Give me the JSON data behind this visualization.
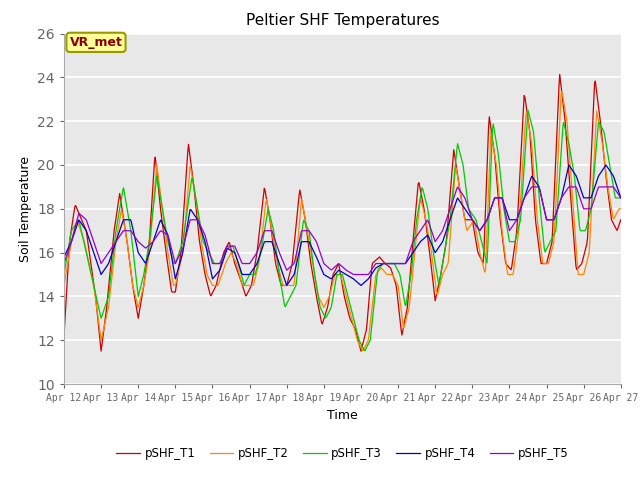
{
  "title": "Peltier SHF Temperatures",
  "xlabel": "Time",
  "ylabel": "Soil Temperature",
  "xlim": [
    0,
    15
  ],
  "ylim": [
    10,
    26
  ],
  "yticks": [
    10,
    12,
    14,
    16,
    18,
    20,
    22,
    24,
    26
  ],
  "xtick_labels": [
    "Apr 12",
    "Apr 13",
    "Apr 14",
    "Apr 15",
    "Apr 16",
    "Apr 17",
    "Apr 18",
    "Apr 19",
    "Apr 20",
    "Apr 21",
    "Apr 22",
    "Apr 23",
    "Apr 24",
    "Apr 25",
    "Apr 26",
    "Apr 27"
  ],
  "annotation_text": "VR_met",
  "colors": {
    "T1": "#cc0000",
    "T2": "#ff8800",
    "T3": "#00cc00",
    "T4": "#0000cc",
    "T5": "#9900cc"
  },
  "background_color": "#e8e8e8",
  "grid_color": "#ffffff",
  "legend_labels": [
    "pSHF_T1",
    "pSHF_T2",
    "pSHF_T3",
    "pSHF_T4",
    "pSHF_T5"
  ],
  "T1_anchors": [
    [
      0.0,
      12.2
    ],
    [
      0.15,
      16.5
    ],
    [
      0.3,
      18.2
    ],
    [
      0.6,
      17.0
    ],
    [
      0.85,
      14.0
    ],
    [
      1.0,
      11.5
    ],
    [
      1.15,
      13.5
    ],
    [
      1.35,
      17.0
    ],
    [
      1.5,
      18.7
    ],
    [
      1.7,
      16.5
    ],
    [
      1.85,
      14.5
    ],
    [
      2.0,
      13.0
    ],
    [
      2.15,
      14.5
    ],
    [
      2.3,
      16.5
    ],
    [
      2.45,
      20.5
    ],
    [
      2.6,
      18.0
    ],
    [
      2.75,
      16.0
    ],
    [
      2.9,
      14.2
    ],
    [
      3.0,
      14.2
    ],
    [
      3.15,
      16.0
    ],
    [
      3.35,
      21.0
    ],
    [
      3.5,
      19.0
    ],
    [
      3.65,
      16.5
    ],
    [
      3.8,
      15.0
    ],
    [
      3.95,
      14.0
    ],
    [
      4.1,
      14.5
    ],
    [
      4.3,
      16.0
    ],
    [
      4.45,
      16.5
    ],
    [
      4.6,
      15.5
    ],
    [
      4.75,
      14.8
    ],
    [
      4.9,
      14.0
    ],
    [
      5.05,
      14.5
    ],
    [
      5.2,
      16.0
    ],
    [
      5.4,
      19.0
    ],
    [
      5.55,
      17.5
    ],
    [
      5.7,
      15.5
    ],
    [
      5.85,
      14.5
    ],
    [
      6.0,
      14.5
    ],
    [
      6.15,
      15.5
    ],
    [
      6.35,
      18.9
    ],
    [
      6.5,
      17.5
    ],
    [
      6.65,
      15.5
    ],
    [
      6.8,
      14.0
    ],
    [
      6.95,
      12.7
    ],
    [
      7.1,
      13.5
    ],
    [
      7.25,
      15.0
    ],
    [
      7.4,
      15.5
    ],
    [
      7.55,
      14.0
    ],
    [
      7.7,
      13.0
    ],
    [
      7.85,
      12.5
    ],
    [
      8.0,
      11.5
    ],
    [
      8.15,
      12.5
    ],
    [
      8.3,
      15.5
    ],
    [
      8.5,
      15.8
    ],
    [
      8.65,
      15.5
    ],
    [
      8.8,
      15.3
    ],
    [
      8.95,
      14.5
    ],
    [
      9.1,
      12.2
    ],
    [
      9.25,
      13.5
    ],
    [
      9.4,
      16.5
    ],
    [
      9.55,
      19.3
    ],
    [
      9.7,
      18.0
    ],
    [
      9.85,
      16.0
    ],
    [
      10.0,
      13.8
    ],
    [
      10.15,
      15.0
    ],
    [
      10.3,
      16.5
    ],
    [
      10.5,
      20.7
    ],
    [
      10.65,
      19.0
    ],
    [
      10.8,
      17.5
    ],
    [
      11.0,
      17.5
    ],
    [
      11.15,
      16.0
    ],
    [
      11.3,
      15.5
    ],
    [
      11.45,
      22.3
    ],
    [
      11.6,
      20.5
    ],
    [
      11.75,
      17.5
    ],
    [
      11.9,
      15.5
    ],
    [
      12.05,
      15.2
    ],
    [
      12.2,
      17.0
    ],
    [
      12.4,
      23.3
    ],
    [
      12.55,
      21.5
    ],
    [
      12.7,
      17.5
    ],
    [
      12.85,
      15.5
    ],
    [
      13.0,
      15.5
    ],
    [
      13.15,
      16.5
    ],
    [
      13.35,
      24.2
    ],
    [
      13.5,
      22.0
    ],
    [
      13.65,
      18.5
    ],
    [
      13.8,
      15.2
    ],
    [
      13.95,
      15.5
    ],
    [
      14.1,
      16.5
    ],
    [
      14.3,
      24.0
    ],
    [
      14.45,
      22.0
    ],
    [
      14.6,
      19.5
    ],
    [
      14.75,
      17.5
    ],
    [
      14.9,
      17.0
    ],
    [
      15.0,
      17.5
    ]
  ],
  "T2_anchors": [
    [
      0.0,
      14.5
    ],
    [
      0.2,
      16.5
    ],
    [
      0.35,
      17.5
    ],
    [
      0.55,
      16.5
    ],
    [
      0.8,
      14.5
    ],
    [
      1.0,
      12.0
    ],
    [
      1.2,
      13.5
    ],
    [
      1.4,
      16.5
    ],
    [
      1.55,
      18.0
    ],
    [
      1.7,
      16.5
    ],
    [
      1.85,
      14.5
    ],
    [
      2.0,
      13.5
    ],
    [
      2.15,
      14.5
    ],
    [
      2.3,
      16.0
    ],
    [
      2.5,
      20.0
    ],
    [
      2.65,
      18.0
    ],
    [
      2.8,
      16.0
    ],
    [
      2.95,
      14.5
    ],
    [
      3.0,
      14.5
    ],
    [
      3.2,
      16.0
    ],
    [
      3.4,
      20.0
    ],
    [
      3.55,
      18.5
    ],
    [
      3.7,
      16.5
    ],
    [
      3.85,
      15.0
    ],
    [
      4.0,
      14.5
    ],
    [
      4.15,
      14.5
    ],
    [
      4.35,
      15.5
    ],
    [
      4.5,
      16.0
    ],
    [
      4.65,
      15.5
    ],
    [
      4.8,
      14.5
    ],
    [
      4.95,
      14.5
    ],
    [
      5.1,
      14.5
    ],
    [
      5.25,
      15.5
    ],
    [
      5.45,
      18.5
    ],
    [
      5.6,
      17.0
    ],
    [
      5.75,
      15.5
    ],
    [
      5.9,
      14.5
    ],
    [
      6.05,
      14.5
    ],
    [
      6.2,
      14.5
    ],
    [
      6.4,
      18.5
    ],
    [
      6.55,
      17.0
    ],
    [
      6.7,
      15.5
    ],
    [
      6.85,
      14.0
    ],
    [
      7.0,
      13.5
    ],
    [
      7.15,
      14.0
    ],
    [
      7.3,
      15.0
    ],
    [
      7.45,
      15.0
    ],
    [
      7.6,
      14.0
    ],
    [
      7.75,
      13.0
    ],
    [
      7.9,
      12.0
    ],
    [
      8.05,
      11.5
    ],
    [
      8.2,
      12.0
    ],
    [
      8.4,
      15.0
    ],
    [
      8.55,
      15.3
    ],
    [
      8.7,
      15.0
    ],
    [
      8.85,
      15.0
    ],
    [
      9.0,
      14.5
    ],
    [
      9.15,
      12.5
    ],
    [
      9.3,
      13.5
    ],
    [
      9.45,
      16.0
    ],
    [
      9.6,
      18.5
    ],
    [
      9.75,
      17.5
    ],
    [
      9.9,
      16.0
    ],
    [
      10.05,
      14.0
    ],
    [
      10.2,
      15.0
    ],
    [
      10.35,
      15.5
    ],
    [
      10.55,
      20.0
    ],
    [
      10.7,
      18.5
    ],
    [
      10.85,
      17.0
    ],
    [
      11.05,
      17.5
    ],
    [
      11.2,
      16.0
    ],
    [
      11.35,
      15.0
    ],
    [
      11.5,
      21.5
    ],
    [
      11.65,
      20.0
    ],
    [
      11.8,
      17.0
    ],
    [
      11.95,
      15.0
    ],
    [
      12.1,
      15.0
    ],
    [
      12.25,
      17.0
    ],
    [
      12.45,
      22.5
    ],
    [
      12.6,
      21.0
    ],
    [
      12.75,
      17.5
    ],
    [
      12.9,
      15.5
    ],
    [
      13.05,
      15.5
    ],
    [
      13.2,
      16.5
    ],
    [
      13.4,
      23.5
    ],
    [
      13.55,
      22.0
    ],
    [
      13.7,
      18.5
    ],
    [
      13.85,
      15.0
    ],
    [
      14.0,
      15.0
    ],
    [
      14.15,
      16.0
    ],
    [
      14.35,
      22.5
    ],
    [
      14.5,
      21.0
    ],
    [
      14.65,
      19.0
    ],
    [
      14.8,
      17.5
    ],
    [
      14.95,
      18.0
    ],
    [
      15.0,
      18.0
    ]
  ],
  "T3_anchors": [
    [
      0.0,
      15.0
    ],
    [
      0.2,
      17.0
    ],
    [
      0.4,
      17.5
    ],
    [
      0.6,
      16.0
    ],
    [
      0.8,
      14.5
    ],
    [
      1.0,
      13.0
    ],
    [
      1.2,
      14.0
    ],
    [
      1.4,
      17.0
    ],
    [
      1.6,
      19.0
    ],
    [
      1.8,
      17.0
    ],
    [
      2.0,
      14.0
    ],
    [
      2.15,
      15.0
    ],
    [
      2.3,
      16.5
    ],
    [
      2.5,
      19.5
    ],
    [
      2.65,
      18.0
    ],
    [
      2.8,
      16.5
    ],
    [
      2.95,
      15.5
    ],
    [
      3.0,
      15.5
    ],
    [
      3.2,
      16.5
    ],
    [
      3.45,
      19.5
    ],
    [
      3.6,
      18.0
    ],
    [
      3.75,
      16.5
    ],
    [
      3.9,
      16.0
    ],
    [
      4.05,
      15.5
    ],
    [
      4.2,
      15.5
    ],
    [
      4.4,
      16.2
    ],
    [
      4.55,
      16.3
    ],
    [
      4.7,
      15.5
    ],
    [
      4.85,
      14.5
    ],
    [
      5.0,
      15.0
    ],
    [
      5.15,
      15.0
    ],
    [
      5.3,
      16.0
    ],
    [
      5.5,
      18.0
    ],
    [
      5.65,
      17.0
    ],
    [
      5.8,
      15.0
    ],
    [
      5.95,
      13.5
    ],
    [
      6.1,
      14.0
    ],
    [
      6.25,
      14.5
    ],
    [
      6.45,
      17.5
    ],
    [
      6.6,
      17.0
    ],
    [
      6.75,
      15.0
    ],
    [
      6.9,
      13.5
    ],
    [
      7.05,
      13.0
    ],
    [
      7.2,
      13.5
    ],
    [
      7.35,
      15.0
    ],
    [
      7.5,
      15.0
    ],
    [
      7.65,
      14.0
    ],
    [
      7.8,
      13.0
    ],
    [
      7.95,
      12.0
    ],
    [
      8.1,
      11.5
    ],
    [
      8.25,
      12.0
    ],
    [
      8.45,
      15.2
    ],
    [
      8.6,
      15.5
    ],
    [
      8.75,
      15.5
    ],
    [
      8.9,
      15.5
    ],
    [
      9.05,
      15.0
    ],
    [
      9.2,
      13.5
    ],
    [
      9.35,
      15.0
    ],
    [
      9.5,
      17.5
    ],
    [
      9.65,
      19.0
    ],
    [
      9.8,
      18.0
    ],
    [
      9.95,
      16.0
    ],
    [
      10.1,
      14.5
    ],
    [
      10.25,
      16.0
    ],
    [
      10.4,
      17.5
    ],
    [
      10.6,
      21.0
    ],
    [
      10.75,
      20.0
    ],
    [
      10.9,
      18.0
    ],
    [
      11.1,
      17.5
    ],
    [
      11.25,
      16.5
    ],
    [
      11.4,
      15.5
    ],
    [
      11.55,
      22.0
    ],
    [
      11.7,
      20.5
    ],
    [
      11.85,
      18.0
    ],
    [
      12.0,
      16.5
    ],
    [
      12.15,
      16.5
    ],
    [
      12.3,
      17.5
    ],
    [
      12.5,
      22.5
    ],
    [
      12.65,
      21.5
    ],
    [
      12.8,
      18.5
    ],
    [
      12.95,
      16.0
    ],
    [
      13.1,
      16.5
    ],
    [
      13.25,
      17.0
    ],
    [
      13.45,
      22.0
    ],
    [
      13.6,
      21.0
    ],
    [
      13.75,
      19.5
    ],
    [
      13.9,
      17.0
    ],
    [
      14.05,
      17.0
    ],
    [
      14.2,
      18.0
    ],
    [
      14.4,
      22.0
    ],
    [
      14.55,
      21.5
    ],
    [
      14.7,
      20.0
    ],
    [
      14.85,
      18.5
    ],
    [
      15.0,
      18.5
    ]
  ],
  "T4_anchors": [
    [
      0.0,
      15.8
    ],
    [
      0.2,
      16.5
    ],
    [
      0.4,
      17.5
    ],
    [
      0.6,
      17.0
    ],
    [
      0.8,
      16.0
    ],
    [
      1.0,
      15.0
    ],
    [
      1.2,
      15.5
    ],
    [
      1.4,
      16.5
    ],
    [
      1.6,
      17.5
    ],
    [
      1.8,
      17.5
    ],
    [
      2.0,
      16.0
    ],
    [
      2.2,
      15.5
    ],
    [
      2.4,
      16.5
    ],
    [
      2.6,
      17.5
    ],
    [
      2.8,
      16.8
    ],
    [
      3.0,
      14.8
    ],
    [
      3.2,
      16.0
    ],
    [
      3.4,
      18.0
    ],
    [
      3.6,
      17.5
    ],
    [
      3.8,
      16.5
    ],
    [
      4.0,
      14.8
    ],
    [
      4.2,
      15.2
    ],
    [
      4.4,
      16.2
    ],
    [
      4.6,
      16.0
    ],
    [
      4.8,
      15.0
    ],
    [
      5.0,
      15.0
    ],
    [
      5.2,
      15.5
    ],
    [
      5.4,
      16.5
    ],
    [
      5.6,
      16.5
    ],
    [
      5.8,
      15.5
    ],
    [
      6.0,
      14.5
    ],
    [
      6.2,
      15.0
    ],
    [
      6.4,
      16.5
    ],
    [
      6.6,
      16.5
    ],
    [
      6.8,
      15.8
    ],
    [
      7.0,
      15.0
    ],
    [
      7.2,
      14.8
    ],
    [
      7.4,
      15.2
    ],
    [
      7.6,
      15.0
    ],
    [
      7.8,
      14.8
    ],
    [
      8.0,
      14.5
    ],
    [
      8.2,
      14.8
    ],
    [
      8.4,
      15.3
    ],
    [
      8.6,
      15.5
    ],
    [
      8.8,
      15.5
    ],
    [
      9.0,
      15.5
    ],
    [
      9.2,
      15.5
    ],
    [
      9.4,
      16.0
    ],
    [
      9.6,
      16.5
    ],
    [
      9.8,
      16.8
    ],
    [
      10.0,
      16.0
    ],
    [
      10.2,
      16.5
    ],
    [
      10.4,
      17.5
    ],
    [
      10.6,
      18.5
    ],
    [
      10.8,
      18.0
    ],
    [
      11.0,
      17.5
    ],
    [
      11.2,
      17.0
    ],
    [
      11.4,
      17.5
    ],
    [
      11.6,
      18.5
    ],
    [
      11.8,
      18.5
    ],
    [
      12.0,
      17.5
    ],
    [
      12.2,
      17.5
    ],
    [
      12.4,
      18.5
    ],
    [
      12.6,
      19.5
    ],
    [
      12.8,
      19.0
    ],
    [
      13.0,
      17.5
    ],
    [
      13.2,
      17.5
    ],
    [
      13.4,
      18.5
    ],
    [
      13.6,
      20.0
    ],
    [
      13.8,
      19.5
    ],
    [
      14.0,
      18.5
    ],
    [
      14.2,
      18.5
    ],
    [
      14.4,
      19.5
    ],
    [
      14.6,
      20.0
    ],
    [
      14.8,
      19.5
    ],
    [
      15.0,
      18.5
    ]
  ],
  "T5_anchors": [
    [
      0.0,
      15.5
    ],
    [
      0.2,
      16.5
    ],
    [
      0.4,
      17.8
    ],
    [
      0.6,
      17.5
    ],
    [
      0.8,
      16.5
    ],
    [
      1.0,
      15.5
    ],
    [
      1.2,
      16.0
    ],
    [
      1.4,
      16.5
    ],
    [
      1.6,
      17.0
    ],
    [
      1.8,
      17.0
    ],
    [
      2.0,
      16.5
    ],
    [
      2.2,
      16.2
    ],
    [
      2.4,
      16.5
    ],
    [
      2.6,
      17.0
    ],
    [
      2.8,
      16.8
    ],
    [
      3.0,
      15.5
    ],
    [
      3.2,
      16.2
    ],
    [
      3.4,
      17.5
    ],
    [
      3.6,
      17.5
    ],
    [
      3.8,
      16.8
    ],
    [
      4.0,
      15.5
    ],
    [
      4.2,
      15.5
    ],
    [
      4.4,
      16.3
    ],
    [
      4.6,
      16.3
    ],
    [
      4.8,
      15.5
    ],
    [
      5.0,
      15.5
    ],
    [
      5.2,
      16.0
    ],
    [
      5.4,
      17.0
    ],
    [
      5.6,
      17.0
    ],
    [
      5.8,
      16.0
    ],
    [
      6.0,
      15.2
    ],
    [
      6.2,
      15.5
    ],
    [
      6.4,
      17.0
    ],
    [
      6.6,
      17.0
    ],
    [
      6.8,
      16.5
    ],
    [
      7.0,
      15.5
    ],
    [
      7.2,
      15.2
    ],
    [
      7.4,
      15.5
    ],
    [
      7.6,
      15.2
    ],
    [
      7.8,
      15.0
    ],
    [
      8.0,
      15.0
    ],
    [
      8.2,
      15.0
    ],
    [
      8.4,
      15.5
    ],
    [
      8.6,
      15.5
    ],
    [
      8.8,
      15.5
    ],
    [
      9.0,
      15.5
    ],
    [
      9.2,
      15.5
    ],
    [
      9.4,
      16.5
    ],
    [
      9.6,
      17.0
    ],
    [
      9.8,
      17.5
    ],
    [
      10.0,
      16.5
    ],
    [
      10.2,
      17.0
    ],
    [
      10.4,
      18.0
    ],
    [
      10.6,
      19.0
    ],
    [
      10.8,
      18.5
    ],
    [
      11.0,
      17.5
    ],
    [
      11.2,
      17.0
    ],
    [
      11.4,
      17.5
    ],
    [
      11.6,
      18.5
    ],
    [
      11.8,
      18.5
    ],
    [
      12.0,
      17.0
    ],
    [
      12.2,
      17.5
    ],
    [
      12.4,
      18.5
    ],
    [
      12.6,
      19.0
    ],
    [
      12.8,
      19.0
    ],
    [
      13.0,
      17.5
    ],
    [
      13.2,
      17.5
    ],
    [
      13.4,
      18.5
    ],
    [
      13.6,
      19.0
    ],
    [
      13.8,
      19.0
    ],
    [
      14.0,
      18.0
    ],
    [
      14.2,
      18.0
    ],
    [
      14.4,
      19.0
    ],
    [
      14.6,
      19.0
    ],
    [
      14.8,
      19.0
    ],
    [
      15.0,
      18.5
    ]
  ]
}
